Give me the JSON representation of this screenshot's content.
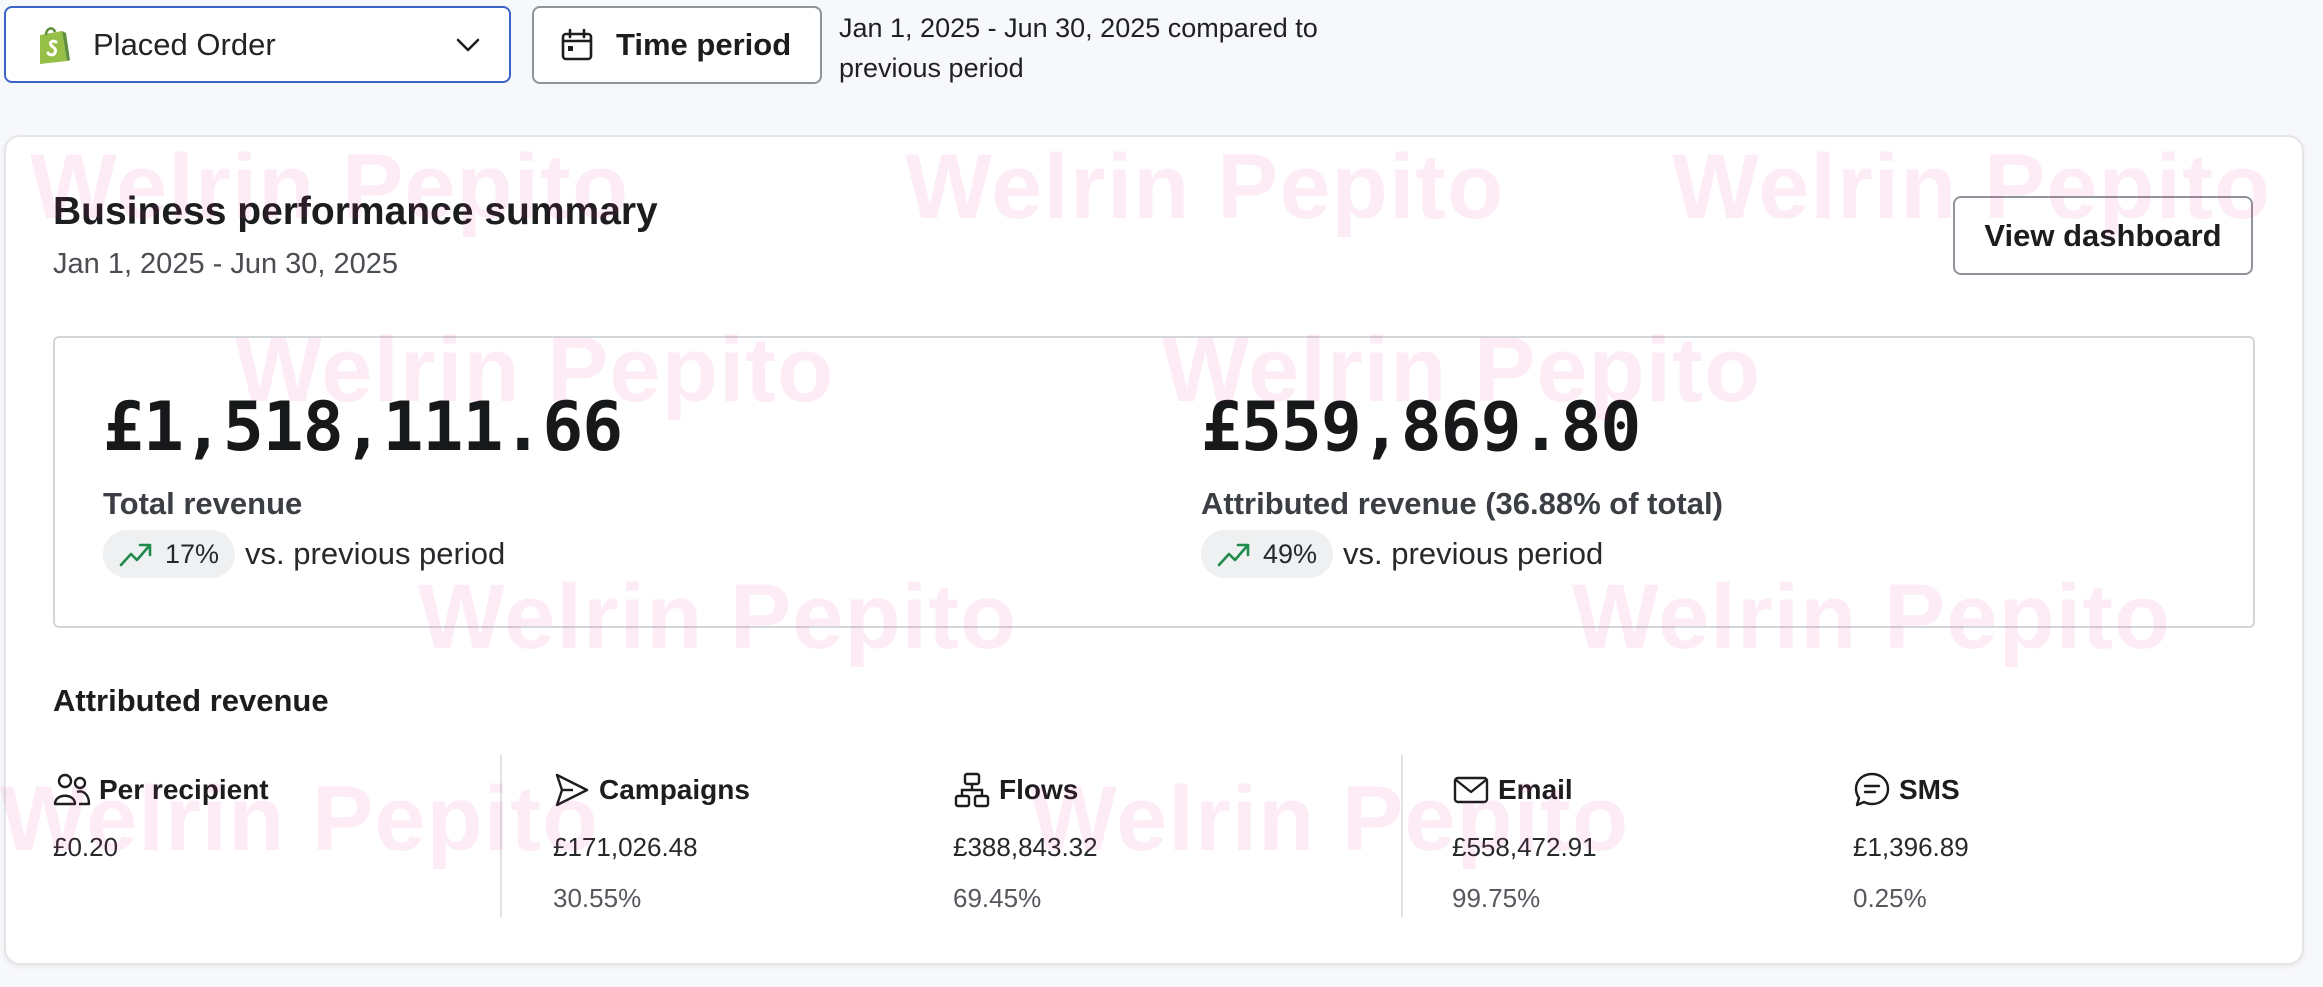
{
  "toolbar": {
    "metric_select": {
      "label": "Placed Order",
      "icon": "shopify-logo"
    },
    "time_period_label": "Time period",
    "compare_text": "Jan 1, 2025 - Jun 30, 2025 compared to previous period"
  },
  "watermark": "Welrin Pepito",
  "summary": {
    "title": "Business performance summary",
    "date_range": "Jan 1, 2025 - Jun 30, 2025",
    "view_dashboard_label": "View dashboard"
  },
  "kpis": {
    "total": {
      "value": "£1,518,111.66",
      "label": "Total revenue",
      "change": "17%",
      "change_text": "vs. previous period"
    },
    "attributed": {
      "value": "£559,869.80",
      "label": "Attributed revenue (36.88% of total)",
      "change": "49%",
      "change_text": "vs. previous period"
    }
  },
  "attributed_section": {
    "title": "Attributed revenue",
    "items": [
      {
        "label": "Per recipient",
        "value": "£0.20",
        "percent": "",
        "icon": "people-icon"
      },
      {
        "label": "Campaigns",
        "value": "£171,026.48",
        "percent": "30.55%",
        "icon": "send-icon"
      },
      {
        "label": "Flows",
        "value": "£388,843.32",
        "percent": "69.45%",
        "icon": "flow-icon"
      },
      {
        "label": "Email",
        "value": "£558,472.91",
        "percent": "99.75%",
        "icon": "mail-icon"
      },
      {
        "label": "SMS",
        "value": "£1,396.89",
        "percent": "0.25%",
        "icon": "message-icon"
      }
    ]
  },
  "colors": {
    "accent_border": "#3b64c8",
    "trend_up": "#1f8a4c",
    "shopify_green": "#95bf47",
    "watermark": "#e9219a"
  }
}
